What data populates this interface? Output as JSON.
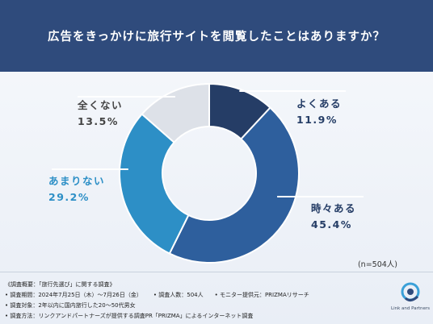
{
  "header": {
    "title": "広告をきっかけに旅行サイトを閲覧したことはありますか？"
  },
  "chart_data": {
    "type": "pie",
    "donut": true,
    "slices": [
      {
        "label": "よくある",
        "value": 11.9,
        "value_label": "11.9%",
        "color": "#253d66"
      },
      {
        "label": "時々ある",
        "value": 45.4,
        "value_label": "45.4%",
        "color": "#2e5f9d"
      },
      {
        "label": "あまりない",
        "value": 29.2,
        "value_label": "29.2%",
        "color": "#2d8fc6"
      },
      {
        "label": "全くない",
        "value": 13.5,
        "value_label": "13.5%",
        "color": "#dde1e8"
      }
    ],
    "sample_size": "(n=504人)"
  },
  "footnotes": {
    "summary": "《調査概要：「旅行先選び」に関する調査》",
    "period": "• 調査期間：2024年7月25日（木）～7月26日（金）",
    "count": "• 調査人数：504人",
    "provider": "• モニター提供元：PRIZMAリサーチ",
    "target": "• 調査対象：2年以内に国内旅行した20～50代男女",
    "method": "• 調査方法：リンクアンドパートナーズが提供する調査PR「PRIZMA」によるインターネット調査"
  },
  "logo": {
    "text": "Link and Partners"
  }
}
